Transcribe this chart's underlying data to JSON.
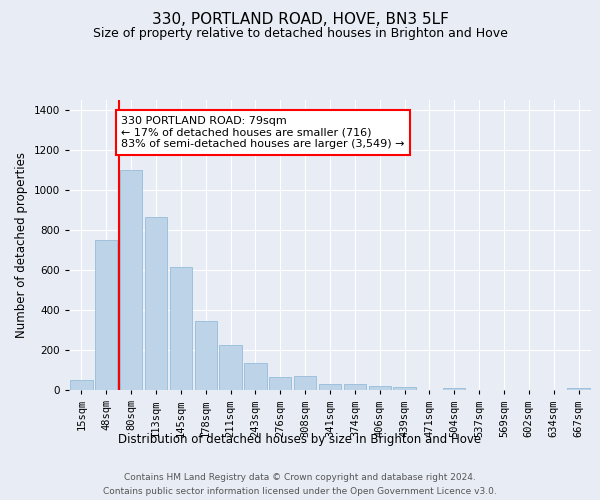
{
  "title": "330, PORTLAND ROAD, HOVE, BN3 5LF",
  "subtitle": "Size of property relative to detached houses in Brighton and Hove",
  "xlabel": "Distribution of detached houses by size in Brighton and Hove",
  "ylabel": "Number of detached properties",
  "footer_line1": "Contains HM Land Registry data © Crown copyright and database right 2024.",
  "footer_line2": "Contains public sector information licensed under the Open Government Licence v3.0.",
  "categories": [
    "15sqm",
    "48sqm",
    "80sqm",
    "113sqm",
    "145sqm",
    "178sqm",
    "211sqm",
    "243sqm",
    "276sqm",
    "308sqm",
    "341sqm",
    "374sqm",
    "406sqm",
    "439sqm",
    "471sqm",
    "504sqm",
    "537sqm",
    "569sqm",
    "602sqm",
    "634sqm",
    "667sqm"
  ],
  "values": [
    50,
    750,
    1100,
    865,
    615,
    345,
    225,
    135,
    65,
    70,
    30,
    30,
    22,
    15,
    0,
    12,
    0,
    0,
    0,
    0,
    12
  ],
  "bar_color": "#bdd4e8",
  "bar_edge_color": "#8ab4d4",
  "vline_x": 1.5,
  "vline_color": "red",
  "annotation_text": "330 PORTLAND ROAD: 79sqm\n← 17% of detached houses are smaller (716)\n83% of semi-detached houses are larger (3,549) →",
  "annotation_box_color": "white",
  "annotation_box_edge_color": "red",
  "ylim": [
    0,
    1450
  ],
  "background_color": "#e8edf5",
  "plot_bg_color": "#e8edf5",
  "grid_color": "white",
  "title_fontsize": 11,
  "subtitle_fontsize": 9,
  "axis_label_fontsize": 8.5,
  "tick_fontsize": 7.5,
  "annotation_fontsize": 8,
  "footer_fontsize": 6.5
}
